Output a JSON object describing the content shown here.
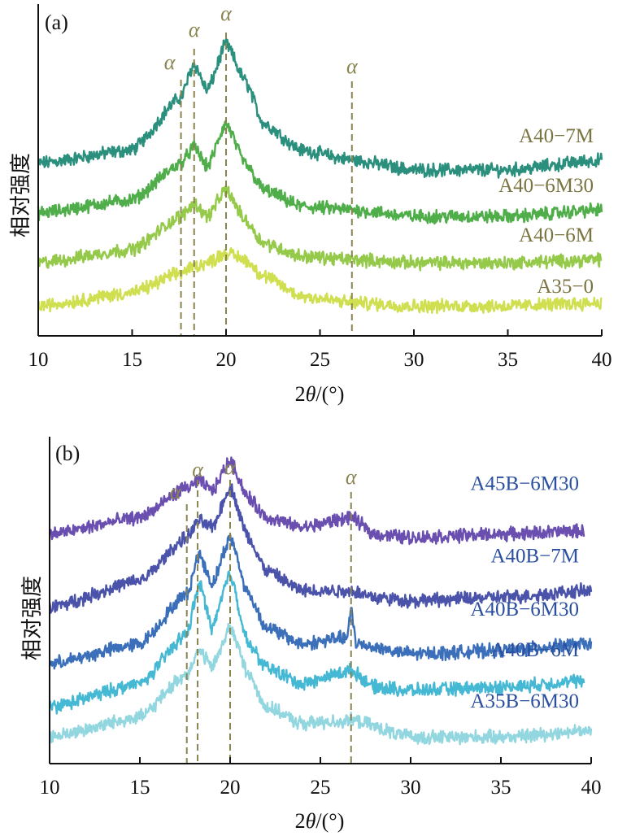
{
  "chart_data": [
    {
      "type": "line",
      "panel": "(a)",
      "xlabel": "2θ/(°)",
      "ylabel": "相对强度",
      "xlim": [
        10,
        40
      ],
      "ylim": [
        0,
        100
      ],
      "xticks": [
        10,
        15,
        20,
        25,
        30,
        35,
        40
      ],
      "grid": false,
      "label_color": "#7a7440",
      "marker_color": "#8a8450",
      "markers": [
        {
          "x": 17.6,
          "label": "α"
        },
        {
          "x": 18.3,
          "label": "α"
        },
        {
          "x": 20.0,
          "label": "α"
        },
        {
          "x": 26.7,
          "label": "α"
        }
      ],
      "series": [
        {
          "name": "A40-7M",
          "color": "#2a8f7c",
          "x": [
            10,
            15,
            17.6,
            18.3,
            19,
            20,
            21,
            22,
            24,
            26.7,
            30,
            35,
            40
          ],
          "y": [
            52,
            56,
            72,
            82,
            74,
            88,
            77,
            64,
            56,
            53,
            50,
            50,
            53
          ]
        },
        {
          "name": "A40-6M30",
          "color": "#4fae4a",
          "x": [
            10,
            15,
            17.6,
            18.3,
            19,
            20,
            21,
            22,
            24,
            26.7,
            30,
            35,
            40
          ],
          "y": [
            37,
            41,
            52,
            57,
            51,
            64,
            52,
            44,
            39,
            38,
            36,
            36,
            38
          ]
        },
        {
          "name": "A40-6M",
          "color": "#94c94a",
          "x": [
            10,
            15,
            17.6,
            18.3,
            19,
            20,
            21,
            22,
            24,
            26.7,
            30,
            35,
            40
          ],
          "y": [
            22,
            26,
            36,
            40,
            36,
            44,
            35,
            28,
            24,
            23,
            22,
            22,
            23
          ]
        },
        {
          "name": "A35-0",
          "color": "#cfdf50",
          "x": [
            10,
            15,
            17.6,
            18.3,
            19,
            20,
            21,
            22,
            24,
            26.7,
            30,
            35,
            40
          ],
          "y": [
            9,
            13,
            19,
            21,
            22,
            25,
            23,
            18,
            12,
            10,
            9,
            9,
            10
          ]
        }
      ]
    },
    {
      "type": "line",
      "panel": "(b)",
      "xlabel": "2θ/(°)",
      "ylabel": "相对强度",
      "xlim": [
        10,
        40
      ],
      "ylim": [
        0,
        100
      ],
      "xticks": [
        10,
        15,
        20,
        25,
        30,
        35,
        40
      ],
      "grid": false,
      "label_color": "#2a4fa0",
      "marker_color": "#8a8450",
      "markers": [
        {
          "x": 17.6,
          "label": "α"
        },
        {
          "x": 18.2,
          "label": "α"
        },
        {
          "x": 20.0,
          "label": "α"
        },
        {
          "x": 26.7,
          "label": "α"
        }
      ],
      "series": [
        {
          "name": "A45B-6M30",
          "color": "#6a4fb0",
          "x": [
            10,
            15,
            17.6,
            18.3,
            19,
            20,
            21,
            22,
            24,
            26.7,
            28,
            30,
            35,
            40
          ],
          "y": [
            69,
            74,
            83,
            85,
            82,
            91,
            80,
            74,
            71,
            74,
            69,
            68,
            69,
            70
          ]
        },
        {
          "name": "A40B-7M",
          "color": "#4a52aa",
          "x": [
            10,
            15,
            17.6,
            18.3,
            19,
            20,
            21,
            22,
            24,
            26.7,
            28,
            30,
            35,
            40
          ],
          "y": [
            47,
            55,
            68,
            73,
            71,
            83,
            68,
            58,
            52,
            52,
            50,
            49,
            50,
            52
          ]
        },
        {
          "name": "A40B-6M30",
          "color": "#3b6fba",
          "x": [
            10,
            15,
            17.6,
            18.3,
            19,
            20,
            21,
            22,
            24,
            26.5,
            26.7,
            27,
            30,
            35,
            40
          ],
          "y": [
            30,
            36,
            51,
            63,
            54,
            68,
            51,
            41,
            36,
            38,
            46,
            36,
            33,
            34,
            36
          ]
        },
        {
          "name": "A40B-6M",
          "color": "#45b8d4",
          "x": [
            10,
            15,
            17.6,
            18.3,
            19,
            20,
            21,
            22,
            24,
            26.7,
            28,
            30,
            35,
            40
          ],
          "y": [
            17,
            24,
            39,
            54,
            41,
            57,
            36,
            29,
            24,
            28,
            23,
            22,
            23,
            25
          ]
        },
        {
          "name": "A35B-6M30",
          "color": "#92d6e0",
          "x": [
            10,
            15,
            17.6,
            18.3,
            19,
            20,
            21,
            22,
            24,
            26.7,
            30,
            35,
            40
          ],
          "y": [
            8,
            14,
            27,
            34,
            29,
            41,
            27,
            17,
            12,
            13,
            8,
            8,
            10
          ]
        }
      ]
    }
  ]
}
